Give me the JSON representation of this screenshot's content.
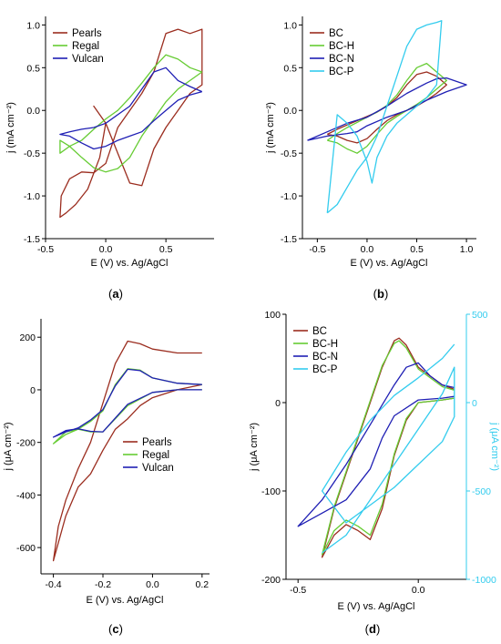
{
  "chart_data": [
    {
      "panel": "a",
      "type": "line",
      "tag": "a",
      "xlabel": "E (V) vs. Ag/AgCl",
      "ylabel": "j (mA cm⁻²)",
      "xlim": [
        -0.5,
        0.9
      ],
      "ylim": [
        -1.5,
        1.1
      ],
      "xticks": [
        -0.5,
        0.0,
        0.5
      ],
      "xtick_labels": [
        "-0.5",
        "0.0",
        "0.5"
      ],
      "yticks": [
        -1.5,
        -1.0,
        -0.5,
        0.0,
        0.5,
        1.0
      ],
      "ytick_labels": [
        "-1.5",
        "-1.0",
        "-0.5",
        "0.0",
        "0.5",
        "1.0"
      ],
      "legend_position": "top-left",
      "series": [
        {
          "name": "Pearls",
          "color": "#9b2d1f",
          "x": [
            0.0,
            -0.05,
            -0.15,
            -0.25,
            -0.33,
            -0.38,
            -0.37,
            -0.3,
            -0.2,
            -0.1,
            0.0,
            0.1,
            0.2,
            0.3,
            0.4,
            0.5,
            0.6,
            0.7,
            0.8,
            0.8,
            0.7,
            0.6,
            0.5,
            0.4,
            0.3,
            0.2,
            0.1,
            0.0,
            -0.1,
            0.0
          ],
          "y": [
            -0.15,
            -0.55,
            -0.92,
            -1.1,
            -1.2,
            -1.25,
            -1.0,
            -0.8,
            -0.72,
            -0.73,
            -0.62,
            -0.2,
            0.0,
            0.2,
            0.45,
            0.9,
            0.95,
            0.9,
            0.95,
            0.3,
            0.2,
            0.0,
            -0.2,
            -0.45,
            -0.88,
            -0.85,
            -0.5,
            -0.15,
            0.05,
            -0.15
          ]
        },
        {
          "name": "Regal",
          "color": "#66cc33",
          "x": [
            0.8,
            0.7,
            0.6,
            0.5,
            0.4,
            0.3,
            0.2,
            0.1,
            0.0,
            -0.1,
            -0.2,
            -0.3,
            -0.38,
            -0.38,
            -0.3,
            -0.2,
            -0.1,
            0.0,
            0.1,
            0.2,
            0.3,
            0.4,
            0.5,
            0.6,
            0.7,
            0.8
          ],
          "y": [
            0.45,
            0.35,
            0.25,
            0.1,
            -0.1,
            -0.3,
            -0.55,
            -0.68,
            -0.72,
            -0.67,
            -0.55,
            -0.42,
            -0.35,
            -0.5,
            -0.42,
            -0.35,
            -0.22,
            -0.1,
            0.0,
            0.15,
            0.32,
            0.5,
            0.65,
            0.6,
            0.5,
            0.45
          ]
        },
        {
          "name": "Vulcan",
          "color": "#1f1fb4",
          "x": [
            0.8,
            0.7,
            0.6,
            0.5,
            0.4,
            0.3,
            0.2,
            0.1,
            0.0,
            -0.1,
            -0.2,
            -0.3,
            -0.38,
            -0.3,
            -0.2,
            -0.1,
            0.0,
            0.1,
            0.2,
            0.3,
            0.4,
            0.5,
            0.6,
            0.7,
            0.8
          ],
          "y": [
            0.22,
            0.18,
            0.12,
            0.0,
            -0.12,
            -0.25,
            -0.3,
            -0.35,
            -0.42,
            -0.45,
            -0.38,
            -0.3,
            -0.28,
            -0.25,
            -0.22,
            -0.2,
            -0.15,
            -0.05,
            0.05,
            0.25,
            0.45,
            0.5,
            0.35,
            0.28,
            0.22
          ]
        }
      ]
    },
    {
      "panel": "b",
      "type": "line",
      "tag": "b",
      "xlabel": "E (V) vs. Ag/AgCl",
      "ylabel": "j (mA cm⁻²)",
      "xlim": [
        -0.65,
        1.1
      ],
      "ylim": [
        -1.5,
        1.1
      ],
      "xticks": [
        -0.5,
        0.0,
        0.5,
        1.0
      ],
      "xtick_labels": [
        "-0.5",
        "0.0",
        "0.5",
        "1.0"
      ],
      "yticks": [
        -1.5,
        -1.0,
        -0.5,
        0.0,
        0.5,
        1.0
      ],
      "ytick_labels": [
        "-1.5",
        "-1.0",
        "-0.5",
        "0.0",
        "0.5",
        "1.0"
      ],
      "legend_position": "top-left",
      "series": [
        {
          "name": "BC",
          "color": "#9b2d1f",
          "x": [
            -0.4,
            -0.3,
            -0.2,
            -0.1,
            0.0,
            0.1,
            0.2,
            0.3,
            0.4,
            0.5,
            0.6,
            0.7,
            0.8,
            0.7,
            0.6,
            0.5,
            0.4,
            0.3,
            0.2,
            0.1,
            0.0,
            -0.1,
            -0.2,
            -0.3,
            -0.4
          ],
          "y": [
            -0.28,
            -0.22,
            -0.17,
            -0.12,
            -0.07,
            -0.02,
            0.05,
            0.15,
            0.3,
            0.42,
            0.45,
            0.4,
            0.3,
            0.2,
            0.12,
            0.05,
            0.0,
            -0.05,
            -0.12,
            -0.22,
            -0.33,
            -0.38,
            -0.35,
            -0.3,
            -0.28
          ]
        },
        {
          "name": "BC-H",
          "color": "#66cc33",
          "x": [
            -0.4,
            -0.3,
            -0.2,
            -0.1,
            0.0,
            0.1,
            0.2,
            0.3,
            0.4,
            0.5,
            0.6,
            0.7,
            0.8,
            0.7,
            0.6,
            0.5,
            0.4,
            0.3,
            0.2,
            0.1,
            0.0,
            -0.1,
            -0.2,
            -0.3,
            -0.4
          ],
          "y": [
            -0.35,
            -0.27,
            -0.2,
            -0.14,
            -0.08,
            -0.02,
            0.06,
            0.18,
            0.35,
            0.5,
            0.55,
            0.45,
            0.35,
            0.25,
            0.15,
            0.07,
            0.0,
            -0.07,
            -0.15,
            -0.28,
            -0.42,
            -0.5,
            -0.45,
            -0.38,
            -0.35
          ]
        },
        {
          "name": "BC-N",
          "color": "#1f1fb4",
          "x": [
            -0.6,
            -0.4,
            -0.2,
            0.0,
            0.2,
            0.4,
            0.6,
            0.7,
            0.8,
            1.0,
            0.8,
            0.6,
            0.4,
            0.2,
            0.0,
            -0.1,
            -0.2,
            -0.4,
            -0.6
          ],
          "y": [
            -0.35,
            -0.25,
            -0.15,
            -0.08,
            0.05,
            0.2,
            0.32,
            0.37,
            0.38,
            0.3,
            0.22,
            0.12,
            0.0,
            -0.08,
            -0.18,
            -0.25,
            -0.27,
            -0.3,
            -0.35
          ]
        },
        {
          "name": "BC-P",
          "color": "#33ccee",
          "x": [
            -0.4,
            -0.3,
            -0.2,
            -0.1,
            0.0,
            0.1,
            0.2,
            0.3,
            0.4,
            0.5,
            0.6,
            0.7,
            0.75,
            0.7,
            0.6,
            0.5,
            0.4,
            0.3,
            0.2,
            0.1,
            0.05,
            0.0,
            -0.1,
            -0.2,
            -0.3,
            -0.4
          ],
          "y": [
            -1.2,
            -1.1,
            -0.9,
            -0.7,
            -0.55,
            -0.3,
            0.05,
            0.4,
            0.75,
            0.95,
            1.0,
            1.03,
            1.05,
            0.3,
            0.15,
            0.05,
            -0.05,
            -0.15,
            -0.3,
            -0.55,
            -0.85,
            -0.6,
            -0.3,
            -0.15,
            -0.05,
            -1.2
          ]
        }
      ]
    },
    {
      "panel": "c",
      "type": "line",
      "tag": "c",
      "xlabel": "E (V) vs. Ag/AgCl",
      "ylabel": "j (μA cm⁻²)",
      "xlim": [
        -0.45,
        0.23
      ],
      "ylim": [
        -700,
        270
      ],
      "xticks": [
        -0.4,
        -0.2,
        0.0,
        0.2
      ],
      "xtick_labels": [
        "-0.4",
        "-0.2",
        "0.0",
        "0.2"
      ],
      "yticks": [
        -600,
        -400,
        -200,
        0,
        200
      ],
      "ytick_labels": [
        "-600",
        "-400",
        "-200",
        "0",
        "200"
      ],
      "legend_position": "bottom-right",
      "series": [
        {
          "name": "Pearls",
          "color": "#9b2d1f",
          "x": [
            0.2,
            0.1,
            0.0,
            -0.05,
            -0.1,
            -0.15,
            -0.2,
            -0.25,
            -0.3,
            -0.35,
            -0.4,
            -0.38,
            -0.35,
            -0.3,
            -0.25,
            -0.2,
            -0.15,
            -0.1,
            -0.05,
            0.0,
            0.1,
            0.2
          ],
          "y": [
            20,
            0,
            -30,
            -60,
            -110,
            -150,
            -230,
            -320,
            -370,
            -480,
            -650,
            -520,
            -420,
            -300,
            -200,
            -50,
            100,
            185,
            175,
            155,
            140,
            140
          ]
        },
        {
          "name": "Regal",
          "color": "#66cc33",
          "x": [
            0.2,
            0.1,
            0.0,
            -0.1,
            -0.2,
            -0.25,
            -0.3,
            -0.35,
            -0.4,
            -0.35,
            -0.3,
            -0.25,
            -0.2,
            -0.15,
            -0.1,
            -0.05,
            0.0,
            0.1,
            0.2
          ],
          "y": [
            0,
            0,
            -10,
            -60,
            -160,
            -160,
            -150,
            -160,
            -205,
            -170,
            -150,
            -120,
            -80,
            20,
            80,
            75,
            45,
            25,
            20
          ]
        },
        {
          "name": "Vulcan",
          "color": "#1f1fb4",
          "x": [
            0.2,
            0.1,
            0.0,
            -0.1,
            -0.2,
            -0.25,
            -0.3,
            -0.35,
            -0.4,
            -0.35,
            -0.3,
            -0.25,
            -0.2,
            -0.15,
            -0.1,
            -0.05,
            0.0,
            0.1,
            0.2
          ],
          "y": [
            0,
            0,
            -10,
            -55,
            -160,
            -158,
            -148,
            -155,
            -180,
            -160,
            -145,
            -115,
            -75,
            15,
            78,
            73,
            45,
            25,
            20
          ]
        }
      ]
    },
    {
      "panel": "d",
      "type": "line",
      "tag": "d",
      "xlabel": "E (V) vs. Ag/AgCl",
      "ylabel": "j (μA cm⁻²)",
      "y2label": "j (μA cm⁻²)",
      "xlim": [
        -0.55,
        0.2
      ],
      "ylim": [
        -200,
        100
      ],
      "y2lim": [
        -1000,
        500
      ],
      "xticks": [
        -0.5,
        0.0
      ],
      "xtick_labels": [
        "-0.5",
        "0.0"
      ],
      "yticks": [
        -200,
        -100,
        0,
        100
      ],
      "ytick_labels": [
        "-200",
        "-100",
        "0",
        "100"
      ],
      "y2ticks": [
        -1000,
        -500,
        0,
        500
      ],
      "y2tick_labels": [
        "-1000",
        "-500",
        "0",
        "500"
      ],
      "legend_position": "top-left",
      "series": [
        {
          "name": "BC",
          "color": "#9b2d1f",
          "axis": "left",
          "x": [
            0.15,
            0.1,
            0.0,
            -0.05,
            -0.1,
            -0.15,
            -0.2,
            -0.25,
            -0.3,
            -0.35,
            -0.4,
            -0.35,
            -0.3,
            -0.25,
            -0.2,
            -0.15,
            -0.1,
            -0.08,
            -0.05,
            0.0,
            0.1,
            0.15
          ],
          "y": [
            5,
            3,
            0,
            -20,
            -60,
            -120,
            -155,
            -145,
            -138,
            -150,
            -175,
            -120,
            -80,
            -40,
            0,
            40,
            70,
            73,
            65,
            40,
            20,
            15
          ]
        },
        {
          "name": "BC-H",
          "color": "#66cc33",
          "axis": "left",
          "x": [
            0.15,
            0.1,
            0.0,
            -0.05,
            -0.1,
            -0.15,
            -0.2,
            -0.25,
            -0.3,
            -0.35,
            -0.4,
            -0.35,
            -0.3,
            -0.25,
            -0.2,
            -0.15,
            -0.1,
            -0.08,
            -0.05,
            0.0,
            0.1,
            0.15
          ],
          "y": [
            5,
            3,
            0,
            -18,
            -58,
            -115,
            -150,
            -140,
            -133,
            -145,
            -172,
            -118,
            -78,
            -38,
            2,
            42,
            67,
            70,
            62,
            38,
            18,
            14
          ]
        },
        {
          "name": "BC-N",
          "color": "#1f1fb4",
          "axis": "left",
          "x": [
            0.15,
            0.1,
            0.0,
            -0.1,
            -0.15,
            -0.2,
            -0.3,
            -0.4,
            -0.5,
            -0.4,
            -0.3,
            -0.2,
            -0.1,
            -0.05,
            0.0,
            0.05,
            0.1,
            0.15
          ],
          "y": [
            7,
            5,
            3,
            -15,
            -40,
            -75,
            -110,
            -125,
            -140,
            -110,
            -70,
            -25,
            20,
            40,
            45,
            30,
            20,
            17
          ]
        },
        {
          "name": "BC-P",
          "color": "#33ccee",
          "axis": "right",
          "x": [
            0.15,
            0.1,
            0.0,
            -0.1,
            -0.2,
            -0.3,
            -0.4,
            -0.3,
            -0.2,
            -0.1,
            0.0,
            0.1,
            0.15,
            0.15,
            0.1,
            0.0,
            -0.1,
            -0.2,
            -0.3,
            -0.4
          ],
          "y": [
            330,
            250,
            140,
            40,
            -100,
            -280,
            -500,
            -680,
            -580,
            -480,
            -350,
            -220,
            -80,
            200,
            50,
            -150,
            -350,
            -550,
            -750,
            -850
          ]
        }
      ]
    }
  ]
}
